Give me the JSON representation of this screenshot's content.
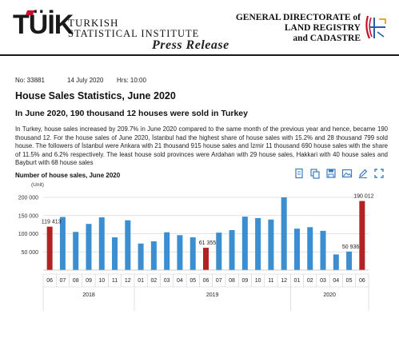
{
  "header": {
    "brand_word": "TÜİK",
    "org_left_line1": "TURKISH",
    "org_left_line2": "STATISTICAL INSTITUTE",
    "org_right_line1": "GENERAL DIRECTORATE of",
    "org_right_line2": "LAND REGISTRY",
    "org_right_line3": "and CADASTRE",
    "press_release": "Press Release"
  },
  "meta": {
    "number": "No: 33881",
    "date": "14 July 2020",
    "hours": "Hrs: 10:00"
  },
  "title": "House Sales Statistics, June 2020",
  "subtitle": "In June 2020, 190 thousand 12 houses were sold in Turkey",
  "paragraph": "In Turkey, house sales increased by 209.7% in June 2020 compared to the same month of the previous year and hence, became 190 thousand 12. For the house sales of June 2020, İstanbul had the highest share of house sales with 15.2% and 28 thousand 799 sold house. The followers of İstanbul were Ankara with 21 thousand 915 house sales and İzmir 11 thousand 690 house sales with the share of 11.5% and 6.2% respectively. The least house sold provinces were Ardahan with 29 house sales, Hakkari with 40 house sales and Bayburt with 68 house sales",
  "toolbar": {
    "icons": [
      "document-icon",
      "copy-icon",
      "save-icon",
      "image-icon",
      "edit-icon",
      "expand-icon"
    ]
  },
  "chart_data": {
    "type": "bar",
    "title": "Number of house sales, June 2020",
    "ylabel": "(Unit)",
    "ylim": [
      0,
      200000
    ],
    "yticks": [
      "50 000",
      "100 000",
      "150 000",
      "200 000"
    ],
    "ytick_values": [
      50000,
      100000,
      150000,
      200000
    ],
    "categories": [
      "06",
      "07",
      "08",
      "09",
      "10",
      "11",
      "12",
      "01",
      "02",
      "03",
      "04",
      "05",
      "06",
      "07",
      "08",
      "09",
      "10",
      "11",
      "12",
      "01",
      "02",
      "03",
      "04",
      "05",
      "06"
    ],
    "years": [
      {
        "label": "2018",
        "start": 0,
        "end": 6
      },
      {
        "label": "2019",
        "start": 7,
        "end": 18
      },
      {
        "label": "2020",
        "start": 19,
        "end": 24
      }
    ],
    "values": [
      119413,
      146000,
      105000,
      127000,
      145000,
      90000,
      137000,
      73000,
      79000,
      104000,
      96000,
      90000,
      61355,
      103000,
      110000,
      147000,
      143000,
      139000,
      200000,
      114000,
      118000,
      108000,
      43000,
      50936,
      190012
    ],
    "highlight_indices": [
      0,
      12,
      24
    ],
    "data_labels": [
      {
        "index": 0,
        "text": "119 413"
      },
      {
        "index": 12,
        "text": "61 355"
      },
      {
        "index": 23,
        "text": "50 936"
      },
      {
        "index": 24,
        "text": "190 012"
      }
    ],
    "colors": {
      "normal": "#3b8fd0",
      "highlight": "#b22222"
    },
    "grid": true
  }
}
